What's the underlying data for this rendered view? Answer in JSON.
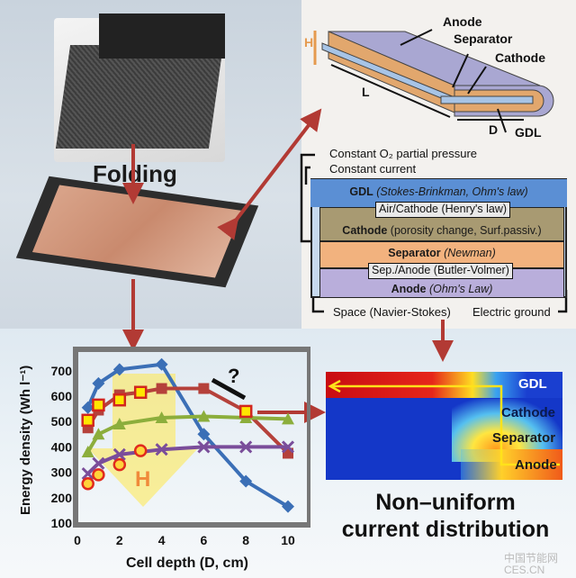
{
  "photos": {
    "step_label": "Folding"
  },
  "cell_diagram": {
    "labels": {
      "anode": "Anode",
      "separator": "Separator",
      "cathode": "Cathode",
      "gdl": "GDL",
      "height": "H",
      "length": "L",
      "depth": "D"
    }
  },
  "model": {
    "bc_top1": "Constant O₂ partial pressure",
    "bc_top2": "Constant current",
    "layers": [
      {
        "name": "GDL",
        "detail": "(Stokes-Brinkman, Ohm's law)",
        "color": "#5b8fd4"
      },
      {
        "name": "Cathode",
        "detail": "(porosity change, Surf.passiv.)",
        "color": "#a89a72"
      },
      {
        "name": "Separator",
        "detail": "(Newman)",
        "color": "#f2b27e"
      },
      {
        "name": "Anode",
        "detail": "(Ohm's Law)",
        "color": "#b9aedb"
      }
    ],
    "interfaces": [
      "Air/Cathode (Henry's law)",
      "Sep./Anode (Butler-Volmer)"
    ],
    "bc_bottom_left": "Space (Navier-Stokes)",
    "bc_bottom_right": "Electric ground"
  },
  "chart_data": {
    "type": "line",
    "xlabel": "Cell depth (D, cm)",
    "ylabel": "Energy density (Wh l⁻¹)",
    "xlim": [
      0,
      10.5
    ],
    "ylim": [
      100,
      750
    ],
    "xticks": [
      "0",
      "2",
      "4",
      "6",
      "8",
      "10"
    ],
    "yticks": [
      "100",
      "200",
      "300",
      "400",
      "500",
      "600",
      "700"
    ],
    "annotations": [
      "?",
      "H"
    ],
    "series": [
      {
        "marker": "diamond",
        "color": "#3b6fb6",
        "x": [
          0.5,
          1,
          2,
          4,
          6,
          8,
          10
        ],
        "y": [
          555,
          650,
          705,
          725,
          450,
          265,
          165
        ]
      },
      {
        "marker": "square",
        "color": "#b5413b",
        "x": [
          0.5,
          1,
          2,
          3,
          4,
          6,
          8,
          10
        ],
        "y": [
          475,
          545,
          605,
          615,
          630,
          630,
          540,
          375
        ]
      },
      {
        "marker": "triangle",
        "color": "#8cae3c",
        "x": [
          0.5,
          1,
          2,
          4,
          6,
          8,
          10
        ],
        "y": [
          380,
          450,
          490,
          515,
          520,
          515,
          510
        ]
      },
      {
        "marker": "x",
        "color": "#7a4d9a",
        "x": [
          0.5,
          1,
          2,
          4,
          6,
          8,
          10
        ],
        "y": [
          295,
          335,
          370,
          390,
          400,
          400,
          400
        ]
      },
      {
        "marker": "square-highlight",
        "color": "#ffe600",
        "x": [
          0.5,
          1,
          2,
          3,
          8
        ],
        "y": [
          505,
          565,
          585,
          615,
          540
        ]
      },
      {
        "marker": "circle-highlight",
        "color": "#ffd23a",
        "x": [
          0.5,
          1,
          2,
          3
        ],
        "y": [
          255,
          290,
          330,
          385
        ]
      }
    ]
  },
  "simulation": {
    "labels": [
      "GDL",
      "Cathode",
      "Separator",
      "Anode"
    ],
    "caption_line1": "Non–uniform",
    "caption_line2": "current distribution"
  },
  "watermark": {
    "text1": "中国节能网",
    "text2": "CES.CN"
  }
}
